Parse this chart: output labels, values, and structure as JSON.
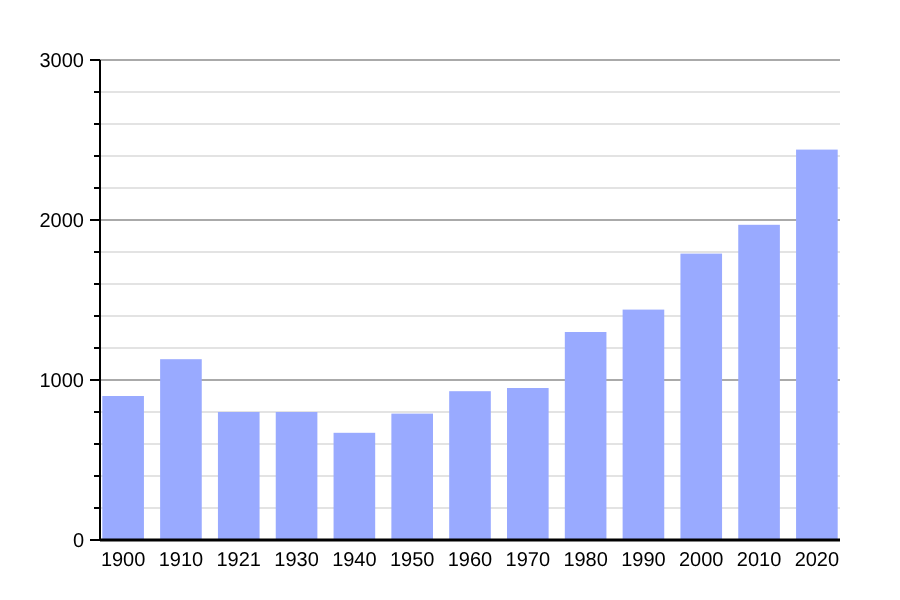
{
  "chart_data": {
    "type": "bar",
    "categories": [
      "1900",
      "1910",
      "1921",
      "1930",
      "1940",
      "1950",
      "1960",
      "1970",
      "1980",
      "1990",
      "2000",
      "2010",
      "2020"
    ],
    "values": [
      900,
      1130,
      800,
      800,
      670,
      790,
      930,
      950,
      1300,
      1440,
      1790,
      1970,
      2440
    ],
    "color": "#99aaff",
    "ylim": [
      0,
      3000
    ],
    "yticks": [
      0,
      {
        "value": 200,
        "label": null
      },
      {
        "value": 400,
        "label": null
      },
      {
        "value": 600,
        "label": null
      },
      {
        "value": 800,
        "label": null
      },
      1000,
      {
        "value": 1200,
        "label": null
      },
      {
        "value": 1400,
        "label": null
      },
      {
        "value": 1600,
        "label": null
      },
      {
        "value": 1800,
        "label": null
      },
      2000,
      {
        "value": 2200,
        "label": null
      },
      {
        "value": 2400,
        "label": null
      },
      {
        "value": 2600,
        "label": null
      },
      {
        "value": 2800,
        "label": null
      },
      3000
    ],
    "grid": true
  }
}
